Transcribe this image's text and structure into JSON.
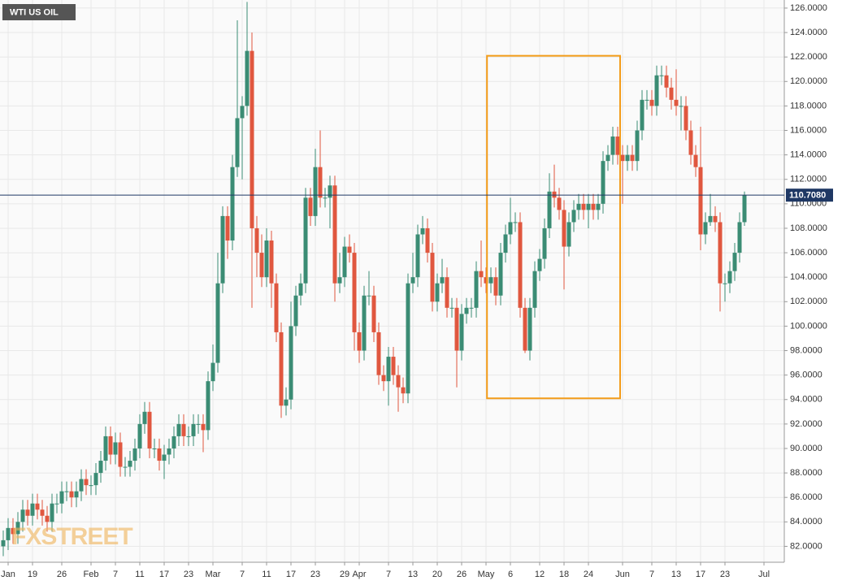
{
  "chart_data": {
    "type": "candlestick",
    "title": "WTI US OIL",
    "watermark": "FXSTREET",
    "categories": [
      null,
      "Jan",
      null,
      null,
      null,
      null,
      "19",
      null,
      null,
      null,
      null,
      null,
      "26",
      null,
      null,
      null,
      null,
      null,
      "Feb",
      null,
      null,
      null,
      null,
      "7",
      null,
      null,
      null,
      null,
      "11",
      null,
      null,
      null,
      null,
      "17",
      null,
      null,
      null,
      null,
      "23",
      null,
      null,
      null,
      null,
      "Mar",
      null,
      null,
      null,
      null,
      null,
      "7",
      null,
      null,
      null,
      null,
      "11",
      null,
      null,
      null,
      null,
      "17",
      null,
      null,
      null,
      null,
      "23",
      null,
      null,
      null,
      null,
      null,
      "29",
      null,
      null,
      "Apr",
      null,
      null,
      null,
      null,
      null,
      "7",
      null,
      null,
      null,
      null,
      "13",
      null,
      null,
      null,
      null,
      "20",
      null,
      null,
      null,
      null,
      "26",
      null,
      null,
      null,
      null,
      "May",
      null,
      null,
      null,
      null,
      "6",
      null,
      null,
      null,
      null,
      null,
      "12",
      null,
      null,
      null,
      null,
      "18",
      null,
      null,
      null,
      null,
      "24",
      null,
      null,
      null,
      null,
      null,
      null,
      "Jun",
      null,
      null,
      null,
      null,
      null,
      "7",
      null,
      null,
      null,
      null,
      "13",
      null,
      null,
      null,
      null,
      "17",
      null,
      null,
      null,
      null,
      "23",
      null,
      null,
      null,
      null,
      null,
      null,
      null,
      "Jul",
      null,
      null,
      null,
      null
    ],
    "open": [
      82,
      82.5,
      83.5,
      83,
      84,
      85,
      84.5,
      85.5,
      85,
      84.5,
      84,
      85.5,
      85.5,
      86.5,
      86.5,
      86,
      86.5,
      87.5,
      87,
      87,
      88,
      89,
      91,
      89.5,
      90.5,
      88.5,
      88.5,
      89,
      90,
      92,
      93,
      90,
      90,
      89,
      89.5,
      90,
      91,
      92,
      91,
      91,
      92,
      92,
      91.5,
      95.5,
      97,
      103.5,
      109,
      107,
      113,
      117,
      118,
      122.5,
      108,
      106,
      104,
      107,
      103.5,
      99.5,
      93.5,
      94,
      100,
      102.5,
      103.5,
      110.5,
      109,
      113,
      110.5,
      110.5,
      111.5,
      103.5,
      104,
      106.5,
      106,
      99.5,
      98,
      102.5,
      102.5,
      99.5,
      96,
      95.5,
      97.5,
      96,
      95,
      94.5,
      103.5,
      104,
      107.5,
      108,
      106,
      102,
      103.5,
      104,
      101.5,
      101.5,
      98,
      101,
      101.5,
      101.5,
      104.5,
      104,
      103.5,
      104,
      102.5,
      106,
      107.5,
      108.5,
      108.5,
      101.5,
      98,
      101.5,
      104.5,
      105.5,
      108,
      111,
      110.5,
      109.5,
      106.5,
      108.5,
      109.5,
      110,
      109.5,
      110,
      109.5,
      110,
      113.5,
      114,
      115.5,
      114,
      113.5,
      114,
      113.5,
      116,
      118.5,
      118.5,
      118,
      120.5,
      120.5,
      119.5,
      118.5,
      118,
      118,
      116,
      114,
      113,
      107.5,
      108.5,
      109,
      108.5,
      103.5,
      103.5,
      104.5,
      106,
      108.5,
      null,
      null,
      null,
      null,
      null,
      null,
      null,
      null
    ],
    "high": [
      83.3,
      84.3,
      84.3,
      84.8,
      85.8,
      85.8,
      86.3,
      86.3,
      85.8,
      85.3,
      86.3,
      86.3,
      87.3,
      87.3,
      87.3,
      87.3,
      88.3,
      88.3,
      87.8,
      88.8,
      89.8,
      91.8,
      91.8,
      91.3,
      91.3,
      89.3,
      89.8,
      90.8,
      92.8,
      93.8,
      93.8,
      90.8,
      90.8,
      90.3,
      90.8,
      91.8,
      92.8,
      92.8,
      91.8,
      92.8,
      92.8,
      92.8,
      96.3,
      98.5,
      106,
      109.8,
      109.8,
      114,
      125,
      118.8,
      126.5,
      124,
      109,
      107.5,
      108,
      107.8,
      104.3,
      100.3,
      95,
      102,
      103.3,
      104.3,
      111.3,
      111.3,
      114.5,
      116,
      111.3,
      112.3,
      112.3,
      106,
      107.3,
      107.5,
      106.8,
      100.3,
      103.3,
      104.5,
      103.3,
      100.3,
      96.8,
      98.3,
      98.3,
      96.8,
      95.8,
      104.3,
      106,
      108.3,
      109,
      108.8,
      106.8,
      104.3,
      105.5,
      104.8,
      102.3,
      102.3,
      101.8,
      102.3,
      102.3,
      105.3,
      107,
      104.8,
      104.8,
      104.8,
      106.8,
      108.3,
      110.5,
      109.3,
      109.3,
      102.3,
      102.3,
      105.3,
      106.3,
      108.8,
      112.5,
      113.2,
      111.3,
      110.3,
      109.3,
      110.3,
      110.8,
      110.8,
      110.8,
      110.8,
      110.8,
      114.3,
      114.8,
      116.3,
      116.3,
      114.8,
      114.8,
      114.8,
      116.8,
      119.3,
      119.3,
      119.3,
      121.3,
      121.3,
      121.3,
      120.3,
      121,
      118.8,
      118.8,
      116.8,
      114.8,
      116.3,
      109.3,
      110.8,
      109.8,
      109.3,
      104.3,
      105.3,
      106.8,
      109.3,
      111,
      null,
      null,
      null,
      null,
      null,
      null,
      null,
      null
    ],
    "low": [
      81.2,
      81.7,
      82.2,
      82.2,
      83.2,
      83.7,
      83.7,
      84.2,
      83.7,
      83.2,
      83.2,
      84.7,
      84.7,
      85.7,
      85.2,
      85.2,
      85.7,
      86.2,
      86.2,
      86.2,
      87.2,
      88.2,
      88.7,
      88.7,
      87.7,
      87.7,
      87.7,
      88.2,
      89.2,
      91.2,
      89.2,
      89.2,
      88.2,
      87.5,
      88.7,
      89.2,
      90.2,
      90.2,
      90.2,
      90.2,
      91.2,
      89.7,
      90.7,
      94.7,
      96.2,
      102.7,
      105.5,
      106.2,
      112.2,
      112,
      117.2,
      101.5,
      104,
      103.2,
      103.2,
      101.5,
      98.7,
      92.5,
      92.7,
      93.2,
      99.2,
      101.7,
      102.7,
      108.2,
      108.2,
      109.7,
      109.7,
      108,
      102,
      102.7,
      103.2,
      105.2,
      98,
      97,
      97.2,
      101.7,
      98.7,
      95.2,
      94.7,
      93.5,
      95.2,
      93,
      93.7,
      93.7,
      102.7,
      103.2,
      106.7,
      105.2,
      101.2,
      101.2,
      102.7,
      100.7,
      100.7,
      95,
      97.2,
      100.2,
      100.7,
      100.7,
      103.2,
      102.7,
      102.7,
      101.7,
      101.7,
      105.2,
      106.7,
      107.7,
      100.7,
      97.8,
      97.2,
      100.7,
      103.7,
      104.7,
      107.2,
      109.7,
      108.7,
      103,
      105.7,
      107.7,
      108.7,
      108.7,
      108,
      108.7,
      108.7,
      109.2,
      112.7,
      113.2,
      113.2,
      110,
      112.7,
      112.7,
      112.7,
      115.2,
      117.7,
      117.2,
      117.2,
      119.7,
      118.7,
      117.7,
      117.2,
      116,
      115.2,
      113.2,
      112.2,
      106.2,
      106.7,
      108.2,
      107.7,
      101.2,
      102,
      102.7,
      103.7,
      105.2,
      108.2,
      null,
      null,
      null,
      null,
      null,
      null,
      null,
      null
    ],
    "close": [
      82.5,
      83.5,
      83,
      84,
      85,
      84.5,
      85.5,
      85,
      84.5,
      84,
      85.5,
      85.5,
      86.5,
      86.5,
      86,
      86.5,
      87.5,
      87,
      87,
      88,
      89,
      91,
      89.5,
      90.5,
      88.5,
      88.5,
      89,
      90,
      92,
      93,
      90,
      90,
      89,
      89.5,
      90,
      91,
      92,
      91,
      91,
      92,
      92,
      91.5,
      95.5,
      97,
      103.5,
      109,
      107,
      113,
      117,
      118,
      122.5,
      108,
      106,
      104,
      107,
      103.5,
      99.5,
      93.5,
      94,
      100,
      102.5,
      103.5,
      110.5,
      109,
      113,
      110.5,
      110.5,
      111.5,
      103.5,
      104,
      106.5,
      106,
      99.5,
      98,
      102.5,
      102.5,
      99.5,
      96,
      95.5,
      97.5,
      96,
      95,
      94.5,
      103.5,
      104,
      107.5,
      108,
      106,
      102,
      103.5,
      104,
      101.5,
      101.5,
      98,
      101,
      101.5,
      101.5,
      104.5,
      104,
      103.5,
      104,
      102.5,
      106,
      107.5,
      108.5,
      108.5,
      101.5,
      98,
      101.5,
      104.5,
      105.5,
      108,
      111,
      110.5,
      109.5,
      106.5,
      108.5,
      109.5,
      110,
      109.5,
      110,
      109.5,
      110,
      113.5,
      114,
      115.5,
      114,
      113.5,
      114,
      113.5,
      116,
      118.5,
      118.5,
      118,
      120.5,
      120.5,
      119.5,
      118.5,
      118,
      118,
      116,
      114,
      113,
      107.5,
      108.5,
      109,
      108.5,
      103.5,
      103.5,
      104.5,
      106,
      108.5,
      110.708,
      null,
      null,
      null,
      null,
      null,
      null,
      null,
      null
    ],
    "up_color": "#3b8c74",
    "down_color": "#e0573f",
    "ylim": [
      80.7,
      126.66
    ],
    "yticks": [
      {
        "value": 82,
        "label": "82.0000"
      },
      {
        "value": 84,
        "label": "84.0000"
      },
      {
        "value": 86,
        "label": "86.0000"
      },
      {
        "value": 88,
        "label": "88.0000"
      },
      {
        "value": 90,
        "label": "90.0000"
      },
      {
        "value": 92,
        "label": "92.0000"
      },
      {
        "value": 94,
        "label": "94.0000"
      },
      {
        "value": 96,
        "label": "96.0000"
      },
      {
        "value": 98,
        "label": "98.0000"
      },
      {
        "value": 100,
        "label": "100.0000"
      },
      {
        "value": 102,
        "label": "102.0000"
      },
      {
        "value": 104,
        "label": "104.0000"
      },
      {
        "value": 106,
        "label": "106.0000"
      },
      {
        "value": 108,
        "label": "108.0000"
      },
      {
        "value": 110,
        "label": "110.0000"
      },
      {
        "value": 112,
        "label": "112.0000"
      },
      {
        "value": 114,
        "label": "114.0000"
      },
      {
        "value": 116,
        "label": "116.0000"
      },
      {
        "value": 118,
        "label": "118.0000"
      },
      {
        "value": 120,
        "label": "120.0000"
      },
      {
        "value": 122,
        "label": "122.0000"
      },
      {
        "value": 124,
        "label": "124.0000"
      },
      {
        "value": 126,
        "label": "126.0000"
      }
    ],
    "grid": true,
    "last_price": {
      "value": 110.708,
      "label": "110.7080",
      "color": "#1f3864"
    },
    "highlight": {
      "low": 94.1,
      "high": 122.1,
      "color": "#f39c1a"
    }
  }
}
